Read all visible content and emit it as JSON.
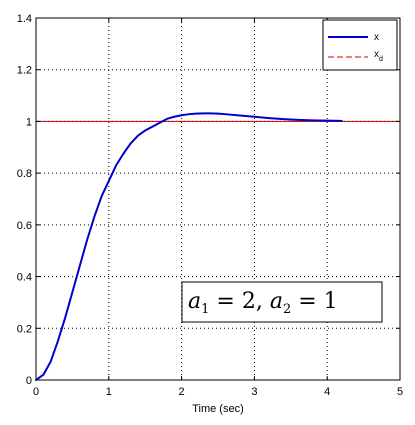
{
  "chart_data": {
    "type": "line",
    "title": "",
    "xlabel": "Time (sec)",
    "ylabel": "",
    "xlim": [
      0,
      5
    ],
    "ylim": [
      0,
      1.4
    ],
    "xticks": [
      0,
      1,
      2,
      3,
      4,
      5
    ],
    "yticks": [
      0,
      0.2,
      0.4,
      0.6,
      0.8,
      1,
      1.2,
      1.4
    ],
    "xtick_labels": [
      "0",
      "1",
      "2",
      "3",
      "4",
      "5"
    ],
    "ytick_labels": [
      "0",
      "0.2",
      "0.4",
      "0.6",
      "0.8",
      "1",
      "1.2",
      "1.4"
    ],
    "grid": true,
    "grid_style": "dotted",
    "legend_position": "top-right",
    "series": [
      {
        "name": "x",
        "color": "#0000cc",
        "style": "solid",
        "x": [
          0,
          0.1,
          0.2,
          0.3,
          0.4,
          0.5,
          0.6,
          0.7,
          0.8,
          0.9,
          1.0,
          1.1,
          1.2,
          1.3,
          1.4,
          1.5,
          1.6,
          1.7,
          1.8,
          1.9,
          2.0,
          2.1,
          2.2,
          2.3,
          2.4,
          2.5,
          2.6,
          2.8,
          3.0,
          3.2,
          3.4,
          3.6,
          3.8,
          4.0,
          4.2
        ],
        "y": [
          0,
          0.02,
          0.07,
          0.15,
          0.24,
          0.34,
          0.44,
          0.54,
          0.63,
          0.71,
          0.77,
          0.83,
          0.875,
          0.915,
          0.945,
          0.965,
          0.98,
          0.995,
          1.01,
          1.018,
          1.024,
          1.028,
          1.03,
          1.031,
          1.031,
          1.03,
          1.028,
          1.023,
          1.018,
          1.013,
          1.009,
          1.006,
          1.004,
          1.003,
          1.002
        ]
      },
      {
        "name": "x_d",
        "color": "#cc0000",
        "style": "dashed",
        "x": [
          0,
          5
        ],
        "y": [
          1,
          1
        ]
      }
    ],
    "legend": {
      "entries": [
        {
          "label": "x",
          "subscript": ""
        },
        {
          "label": "x",
          "subscript": "d"
        }
      ]
    },
    "annotation": {
      "a1_symbol": "a",
      "a1_sub": "1",
      "eq1": " = 2, ",
      "a2_symbol": "a",
      "a2_sub": "2",
      "eq2": " = 1"
    }
  }
}
